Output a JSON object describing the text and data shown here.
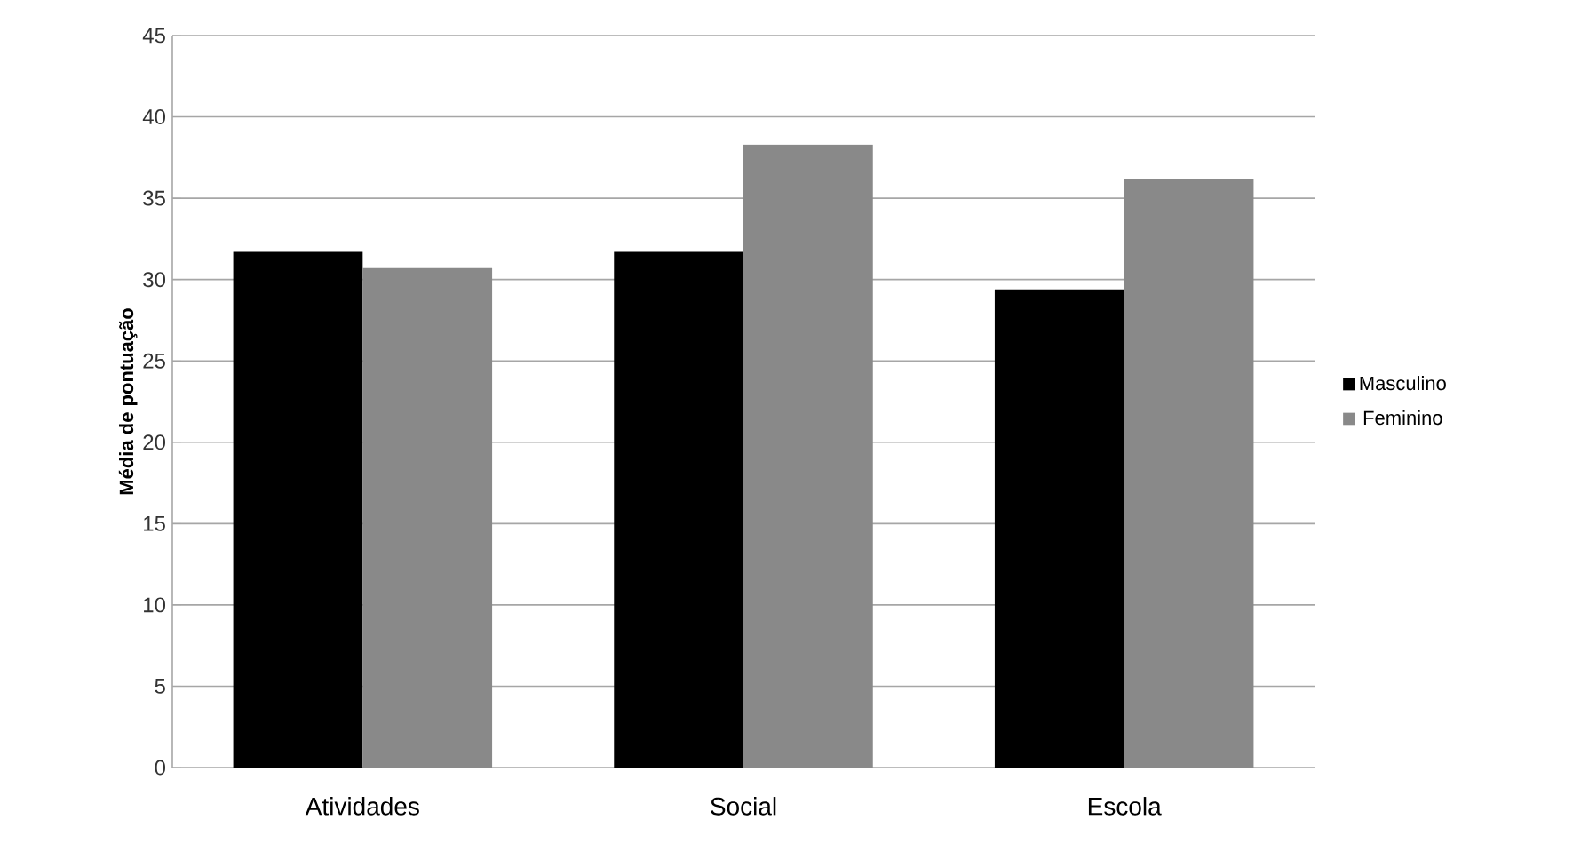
{
  "chart_data": {
    "type": "bar",
    "ylabel": "Média de pontuação",
    "categories": [
      "Atividades",
      "Social",
      "Escola"
    ],
    "series": [
      {
        "name": "Masculino",
        "color": "#000000",
        "values": [
          31.7,
          31.7,
          29.4
        ]
      },
      {
        "name": "Feminino",
        "color": "#898989",
        "values": [
          30.7,
          38.3,
          36.2
        ]
      }
    ],
    "ylim": [
      0,
      45
    ],
    "yticks": [
      0,
      5,
      10,
      15,
      20,
      25,
      30,
      35,
      40,
      45
    ],
    "grid": "y",
    "legend": "right"
  }
}
